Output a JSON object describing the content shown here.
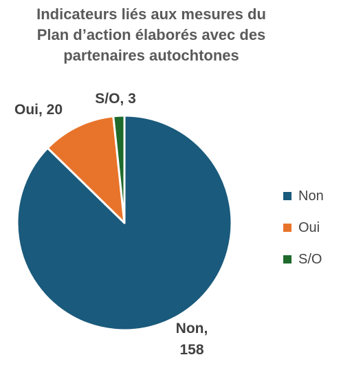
{
  "chart_data": {
    "type": "pie",
    "title_lines": [
      "Indicateurs liés aux mesures du",
      "Plan d’action élaborés avec des",
      "partenaires autochtones"
    ],
    "slices": [
      {
        "name": "Non",
        "value": 158,
        "color": "#1a5a7c",
        "label_lines": [
          "Non,",
          "158"
        ]
      },
      {
        "name": "Oui",
        "value": 20,
        "color": "#e8742b",
        "label_lines": [
          "Oui, 20"
        ]
      },
      {
        "name": "S/O",
        "value": 3,
        "color": "#1e6a2c",
        "label_lines": [
          "S/O, 3"
        ]
      }
    ],
    "legend_position": "right",
    "legend": [
      {
        "label": "Non",
        "color": "#1a5a7c"
      },
      {
        "label": "Oui",
        "color": "#e8742b"
      },
      {
        "label": "S/O",
        "color": "#1e6a2c"
      }
    ]
  }
}
